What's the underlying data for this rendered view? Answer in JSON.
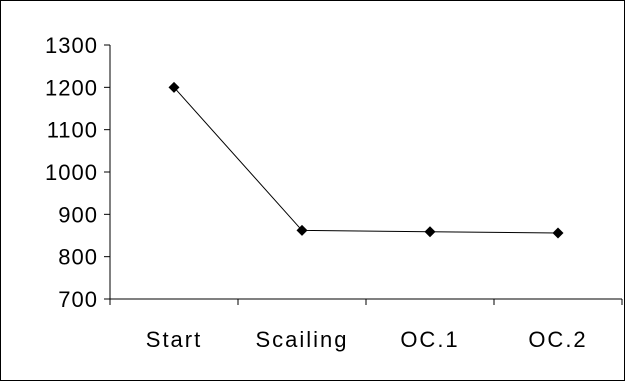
{
  "chart_data": {
    "type": "line",
    "title": "",
    "xlabel": "",
    "ylabel": "",
    "categories": [
      "Start",
      "Scailing",
      "OC.1",
      "OC.2"
    ],
    "series": [
      {
        "values": [
          1200,
          862,
          859,
          856
        ],
        "color": "#000000",
        "marker": "diamond"
      }
    ],
    "ylim": [
      700,
      1300
    ],
    "yticks": [
      700,
      800,
      900,
      1000,
      1100,
      1200,
      1300
    ],
    "ytick_labels": [
      "700",
      "800",
      "900",
      "1000",
      "1100",
      "1200",
      "1300"
    ],
    "grid": false,
    "legend": "none"
  }
}
